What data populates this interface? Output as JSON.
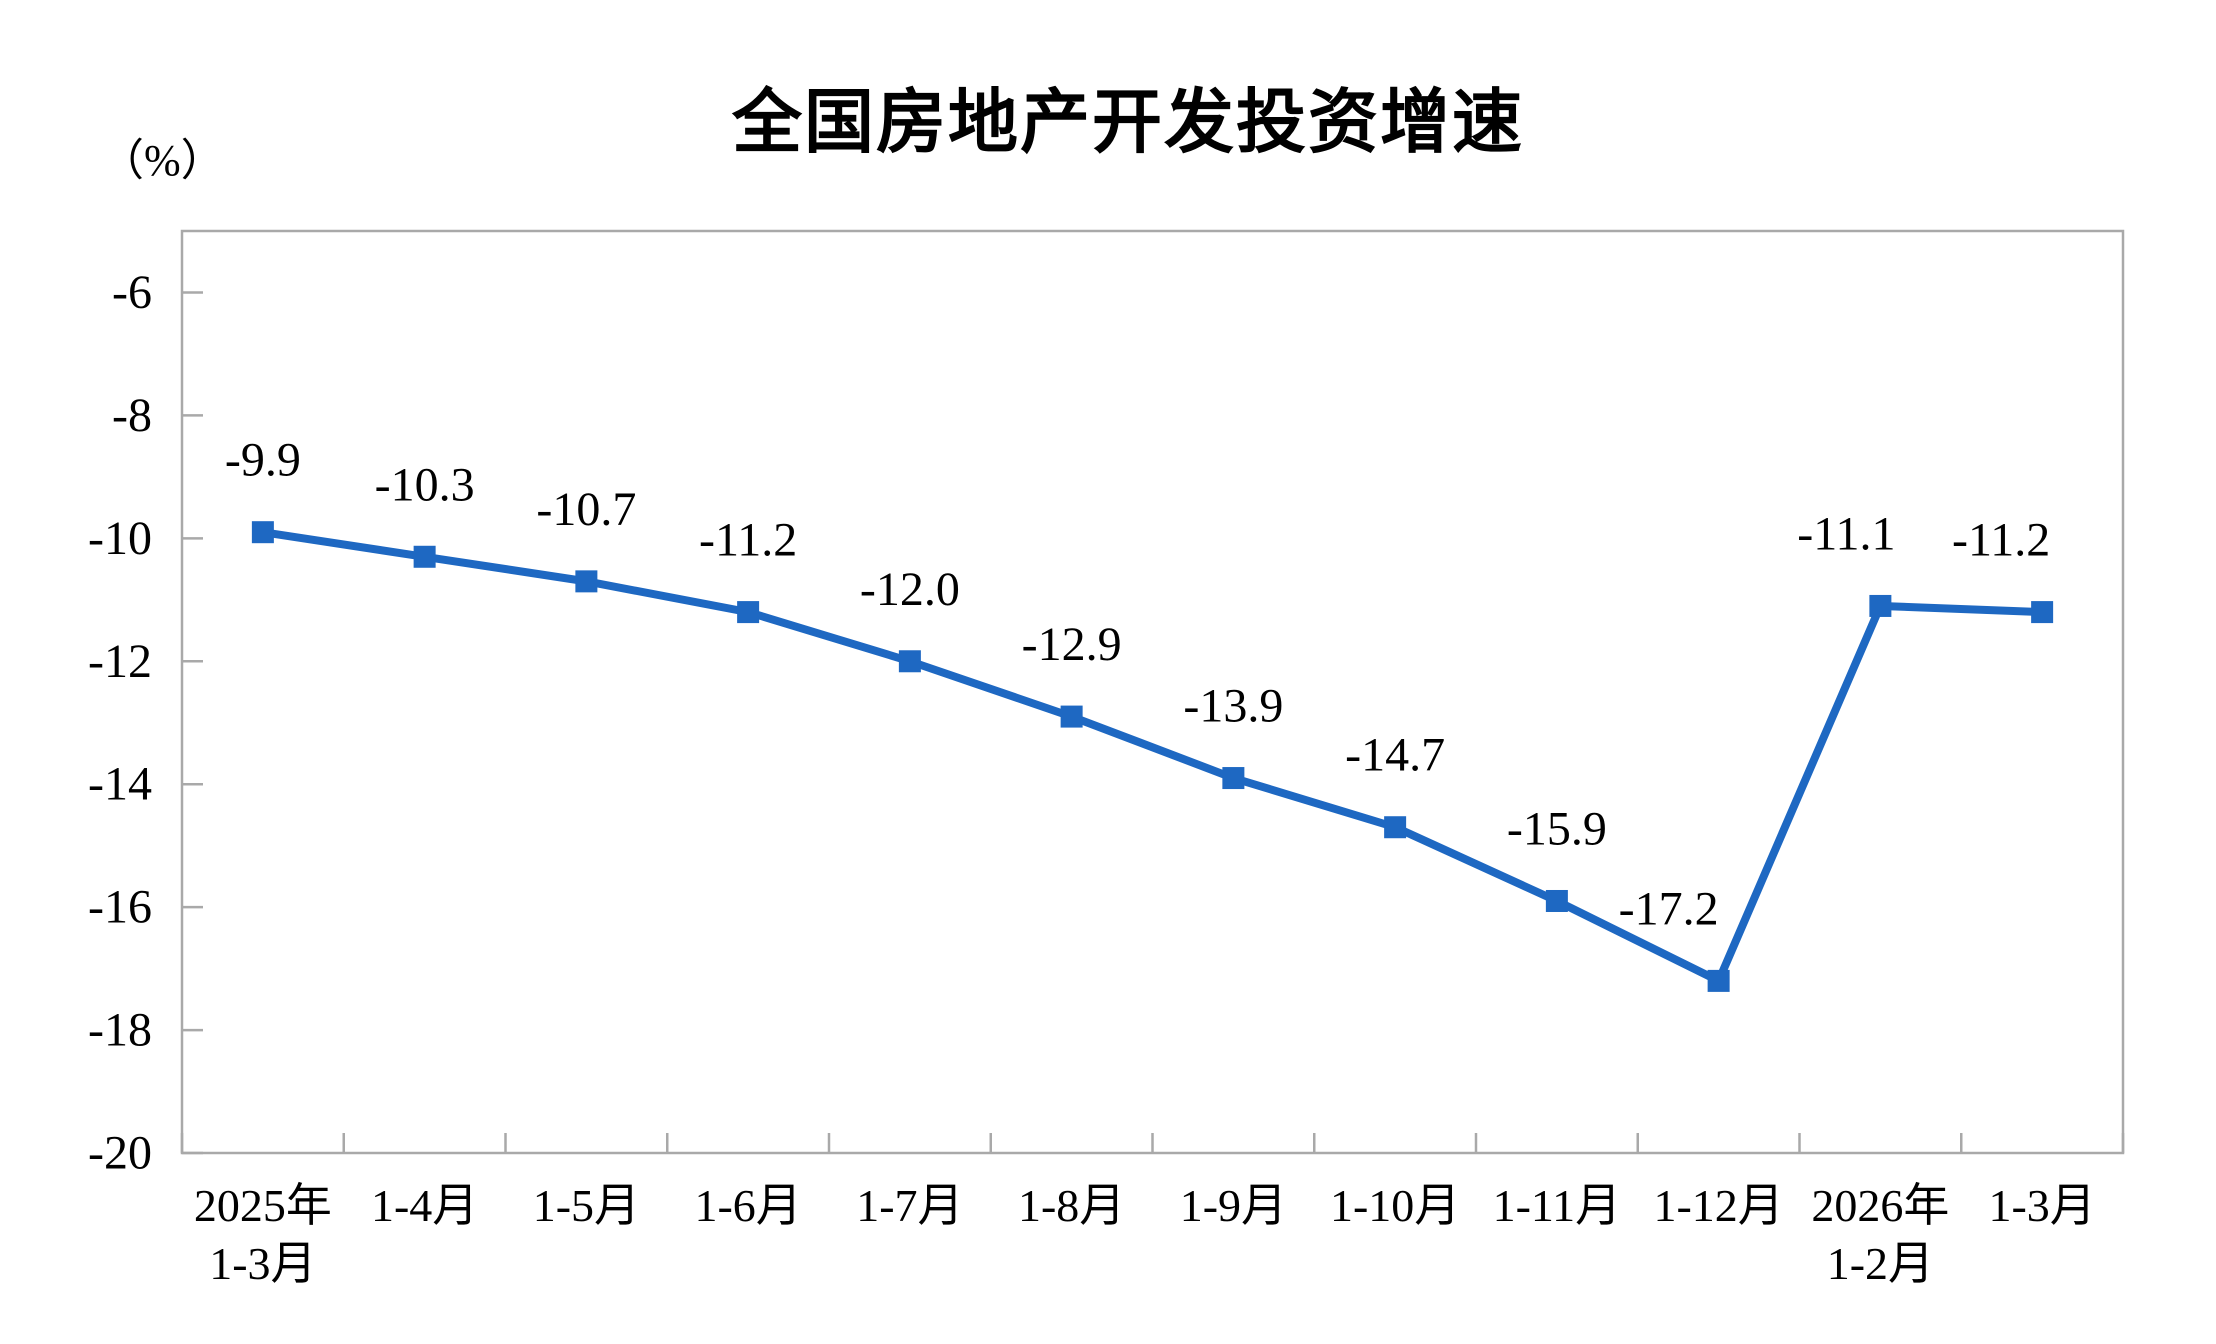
{
  "page": {
    "background": "#ffffff"
  },
  "chart": {
    "title": "全国房地产开发投资增速",
    "unit_label": "（%）"
  },
  "chart_data": {
    "type": "line",
    "title": "全国房地产开发投资增速",
    "ylabel": "（%）",
    "xlabel": "",
    "categories": [
      "2025年\n1-3月",
      "1-4月",
      "1-5月",
      "1-6月",
      "1-7月",
      "1-8月",
      "1-9月",
      "1-10月",
      "1-11月",
      "1-12月",
      "2026年\n1-2月",
      "1-3月"
    ],
    "series": [
      {
        "name": "全国房地产开发投资增速",
        "values": [
          -9.9,
          -10.3,
          -10.7,
          -11.2,
          -12.0,
          -12.9,
          -13.9,
          -14.7,
          -15.9,
          -17.2,
          -11.1,
          -11.2
        ]
      }
    ],
    "point_labels": [
      "-9.9",
      "-10.3",
      "-10.7",
      "-11.2",
      "-12.0",
      "-12.9",
      "-13.9",
      "-14.7",
      "-15.9",
      "-17.2",
      "-11.1",
      "-11.2"
    ],
    "ylim": [
      -20,
      -5
    ],
    "yticks": [
      -6,
      -8,
      -10,
      -12,
      -14,
      -16,
      -18,
      -20
    ],
    "grid": false,
    "legend": "none",
    "marker": "square",
    "colors": {
      "line": "#1E68C2",
      "marker": "#1E68C2",
      "axis": "#A9A9A9",
      "text": "#000000"
    },
    "label_dx": [
      0,
      0,
      0,
      0,
      0,
      0,
      0,
      0,
      0,
      -50,
      -34,
      -41
    ],
    "label_dy": -72
  }
}
